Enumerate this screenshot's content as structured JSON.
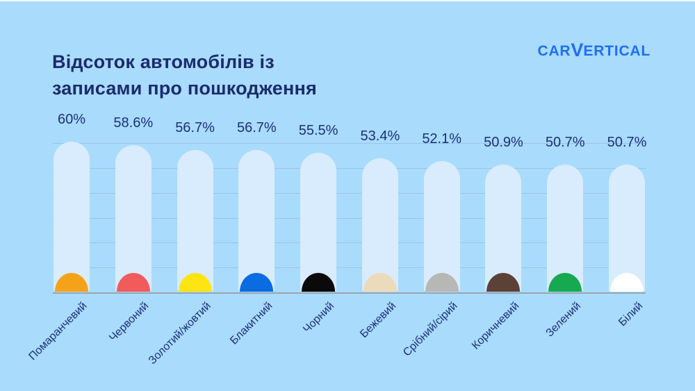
{
  "title": {
    "line1": "Відсоток автомобілів із",
    "line2": "записами про пошкодження"
  },
  "logo": {
    "car": "CAR",
    "v": "V",
    "ertical": "ERTICAL"
  },
  "colors": {
    "background": "#A9DBFC",
    "bar_fill": "#D8ECFD",
    "gridline": "#9CC3E2",
    "axis_line": "#98A4B0",
    "title_text": "#1B2B6E",
    "label_text": "#1C2F78",
    "logo_blue": "#1E6EF6"
  },
  "chart_data": {
    "type": "bar",
    "title": "Відсоток автомобілів із записами про пошкодження",
    "xlabel": "",
    "ylabel": "",
    "ylim": [
      0,
      60
    ],
    "grid": true,
    "gridline_step": 10,
    "legend": false,
    "categories": [
      "Помаранчевий",
      "Червоний",
      "Золотий/жовтий",
      "Блакитний",
      "Чорний",
      "Бежевий",
      "Срібний/сірий",
      "Коричневий",
      "Зелений",
      "Білий"
    ],
    "values": [
      60,
      58.6,
      56.7,
      56.7,
      55.5,
      53.4,
      52.1,
      50.9,
      50.7,
      50.7
    ],
    "value_labels": [
      "60%",
      "58.6%",
      "56.7%",
      "56.7%",
      "55.5%",
      "53.4%",
      "52.1%",
      "50.9%",
      "50.7%",
      "50.7%"
    ],
    "dome_colors": [
      "#F5A21B",
      "#F15B5B",
      "#FFE414",
      "#0B6BE0",
      "#0A0A0A",
      "#EBDBBB",
      "#B7B7B4",
      "#5C4136",
      "#17A94F",
      "#FFFFFF"
    ]
  }
}
